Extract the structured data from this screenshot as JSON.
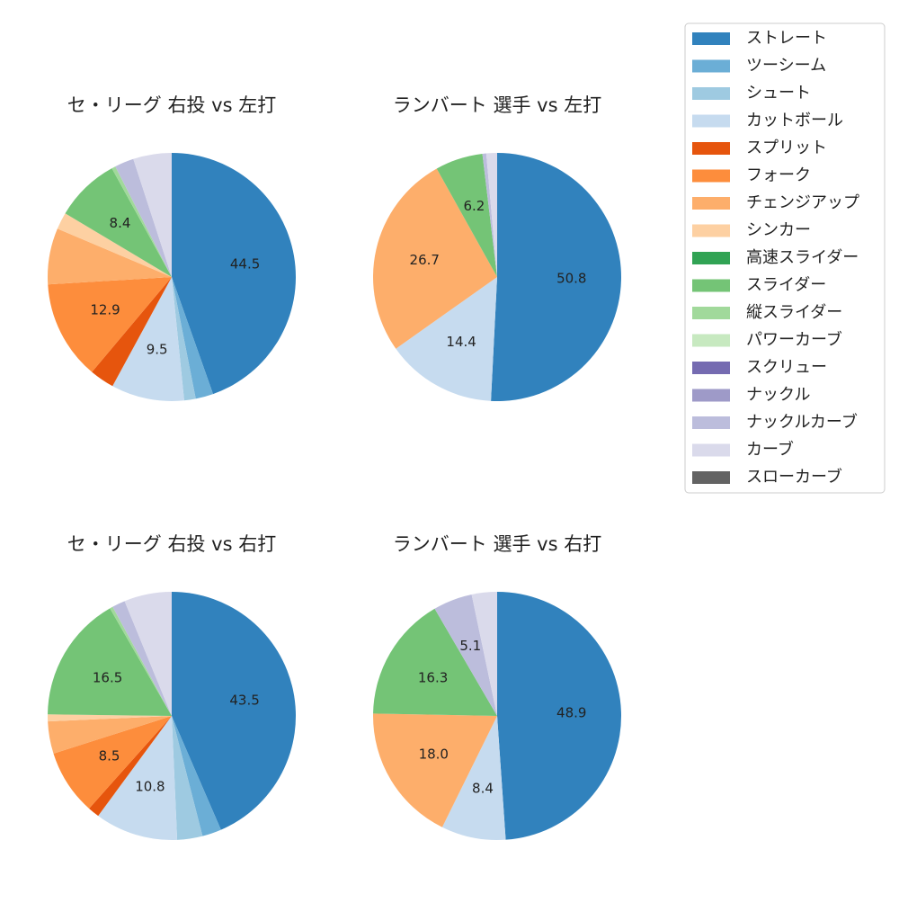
{
  "chart_data": [
    {
      "type": "pie",
      "title": "セ・リーグ 右投 vs 左打",
      "categories": [
        "ストレート",
        "ツーシーム",
        "シュート",
        "カットボール",
        "スプリット",
        "フォーク",
        "チェンジアップ",
        "シンカー",
        "スライダー",
        "縦スライダー",
        "ナックルカーブ",
        "カーブ"
      ],
      "values": [
        44.5,
        2.3,
        1.5,
        9.5,
        3.2,
        12.9,
        7.3,
        2.2,
        8.4,
        0.5,
        2.5,
        5.0
      ],
      "value_labels": [
        "44.5",
        null,
        null,
        "9.5",
        null,
        "12.9",
        null,
        null,
        "8.4",
        null,
        null,
        null
      ],
      "colors": [
        "#3182bd",
        "#6baed6",
        "#9ecae1",
        "#c6dbef",
        "#e6550d",
        "#fd8d3c",
        "#fdae6b",
        "#fdd0a2",
        "#74c476",
        "#a1d99b",
        "#bcbddc",
        "#dadaeb"
      ]
    },
    {
      "type": "pie",
      "title": "ランバート 選手 vs 左打",
      "categories": [
        "ストレート",
        "カットボール",
        "チェンジアップ",
        "スライダー",
        "ナックルカーブ",
        "カーブ"
      ],
      "values": [
        50.8,
        14.4,
        26.7,
        6.2,
        0.5,
        1.4
      ],
      "value_labels": [
        "50.8",
        "14.4",
        "26.7",
        "6.2",
        null,
        null
      ],
      "colors": [
        "#3182bd",
        "#c6dbef",
        "#fdae6b",
        "#74c476",
        "#bcbddc",
        "#dadaeb"
      ]
    },
    {
      "type": "pie",
      "title": "セ・リーグ 右投 vs 右打",
      "categories": [
        "ストレート",
        "ツーシーム",
        "シュート",
        "カットボール",
        "スプリット",
        "フォーク",
        "チェンジアップ",
        "シンカー",
        "スライダー",
        "縦スライダー",
        "ナックルカーブ",
        "カーブ"
      ],
      "values": [
        43.5,
        2.5,
        3.3,
        10.8,
        1.5,
        8.5,
        4.2,
        0.9,
        16.5,
        0.4,
        1.7,
        6.2
      ],
      "value_labels": [
        "43.5",
        null,
        null,
        "10.8",
        null,
        "8.5",
        null,
        null,
        "16.5",
        null,
        null,
        null
      ],
      "colors": [
        "#3182bd",
        "#6baed6",
        "#9ecae1",
        "#c6dbef",
        "#e6550d",
        "#fd8d3c",
        "#fdae6b",
        "#fdd0a2",
        "#74c476",
        "#a1d99b",
        "#bcbddc",
        "#dadaeb"
      ]
    },
    {
      "type": "pie",
      "title": "ランバート 選手 vs 右打",
      "categories": [
        "ストレート",
        "カットボール",
        "チェンジアップ",
        "スライダー",
        "ナックルカーブ",
        "カーブ"
      ],
      "values": [
        48.9,
        8.4,
        18.0,
        16.3,
        5.1,
        3.3
      ],
      "value_labels": [
        "48.9",
        "8.4",
        "18.0",
        "16.3",
        "5.1",
        null
      ],
      "colors": [
        "#3182bd",
        "#c6dbef",
        "#fdae6b",
        "#74c476",
        "#bcbddc",
        "#dadaeb"
      ]
    }
  ],
  "legend": {
    "items": [
      {
        "name": "ストレート",
        "color": "#3182bd"
      },
      {
        "name": "ツーシーム",
        "color": "#6baed6"
      },
      {
        "name": "シュート",
        "color": "#9ecae1"
      },
      {
        "name": "カットボール",
        "color": "#c6dbef"
      },
      {
        "name": "スプリット",
        "color": "#e6550d"
      },
      {
        "name": "フォーク",
        "color": "#fd8d3c"
      },
      {
        "name": "チェンジアップ",
        "color": "#fdae6b"
      },
      {
        "name": "シンカー",
        "color": "#fdd0a2"
      },
      {
        "name": "高速スライダー",
        "color": "#31a354"
      },
      {
        "name": "スライダー",
        "color": "#74c476"
      },
      {
        "name": "縦スライダー",
        "color": "#a1d99b"
      },
      {
        "name": "パワーカーブ",
        "color": "#c7e9c0"
      },
      {
        "name": "スクリュー",
        "color": "#756bb1"
      },
      {
        "name": "ナックル",
        "color": "#9e9ac8"
      },
      {
        "name": "ナックルカーブ",
        "color": "#bcbddc"
      },
      {
        "name": "カーブ",
        "color": "#dadaeb"
      },
      {
        "name": "スローカーブ",
        "color": "#636363"
      }
    ]
  }
}
